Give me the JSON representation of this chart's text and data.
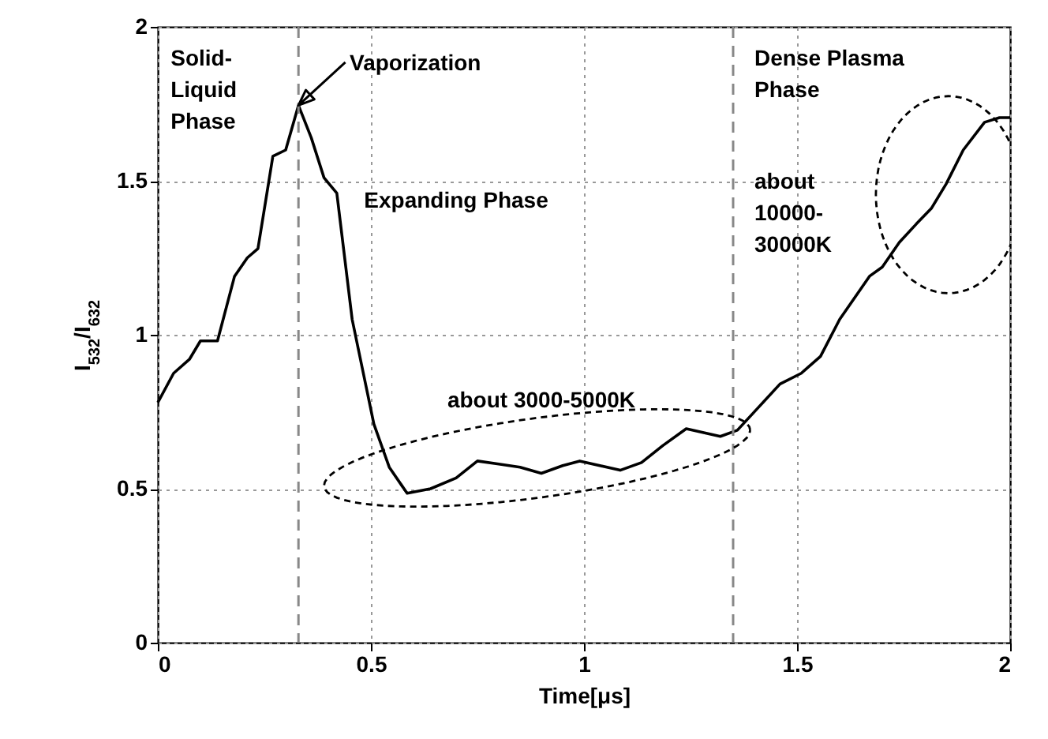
{
  "chart_data": {
    "type": "line",
    "xlabel": "Time[μs]",
    "ylabel": "I$_{532}$/I$_{632}$",
    "series": [
      {
        "color": "#000000",
        "x": [
          0,
          0.037,
          0.074,
          0.1,
          0.14,
          0.18,
          0.21,
          0.235,
          0.27,
          0.3,
          0.33,
          0.36,
          0.39,
          0.42,
          0.456,
          0.507,
          0.543,
          0.585,
          0.64,
          0.7,
          0.75,
          0.8,
          0.85,
          0.9,
          0.95,
          0.99,
          1.085,
          1.135,
          1.185,
          1.24,
          1.32,
          1.36,
          1.41,
          1.46,
          1.51,
          1.555,
          1.6,
          1.67,
          1.7,
          1.74,
          1.78,
          1.815,
          1.85,
          1.89,
          1.94,
          1.975,
          2
        ],
        "values": [
          0.78,
          0.875,
          0.92,
          0.98,
          0.98,
          1.19,
          1.25,
          1.28,
          1.58,
          1.6,
          1.745,
          1.64,
          1.51,
          1.46,
          1.05,
          0.71,
          0.57,
          0.485,
          0.5,
          0.535,
          0.59,
          0.58,
          0.57,
          0.55,
          0.575,
          0.59,
          0.56,
          0.585,
          0.64,
          0.695,
          0.67,
          0.69,
          0.765,
          0.84,
          0.875,
          0.93,
          1.05,
          1.19,
          1.22,
          1.3,
          1.36,
          1.41,
          1.49,
          1.6,
          1.69,
          1.705,
          1.705
        ]
      }
    ],
    "xlim": [
      0,
      2
    ],
    "xticks": [
      0,
      0.5,
      1,
      1.5,
      2
    ],
    "ylim": [
      0,
      2
    ],
    "yticks": [
      0,
      0.5,
      1,
      1.5,
      2
    ],
    "grid": true,
    "marker": "none",
    "line_style": "solid",
    "ref_lines": [
      {
        "axis": "x",
        "value": 0.33,
        "color": "#888888",
        "line_style": "dashed"
      },
      {
        "axis": "x",
        "value": 1.35,
        "color": "#888888",
        "line_style": "dashed"
      }
    ],
    "annotations": [
      "Solid-\nLiquid\nPhase",
      {
        "text": "Vaporization",
        "x": 0.33,
        "y": 1.745
      },
      "Expanding Phase",
      "Dense Plasma\nPhase",
      "about 3000-5000K",
      "about\n10000-\n30000K"
    ]
  }
}
